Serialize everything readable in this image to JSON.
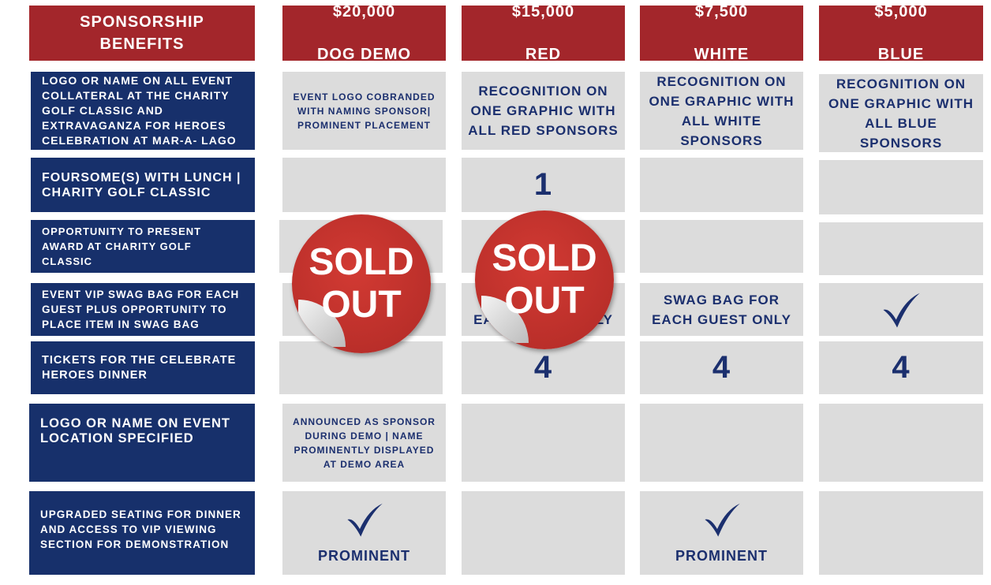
{
  "header": {
    "title": "SPONSORSHIP BENEFITS",
    "columns": [
      {
        "price": "$20,000",
        "name": "DOG DEMO"
      },
      {
        "price": "$15,000",
        "name": "RED"
      },
      {
        "price": "$7,500",
        "name": "WHITE"
      },
      {
        "price": "$5,000",
        "name": "BLUE"
      }
    ]
  },
  "rows": [
    {
      "label": "LOGO OR NAME ON ALL EVENT COLLATERAL AT THE CHARITY GOLF CLASSIC AND EXTRAVAGANZA FOR HEROES CELEBRATION AT MAR-A- LAGO",
      "cells": [
        "EVENT LOGO COBRANDED WITH NAMING SPONSOR| PROMINENT PLACEMENT",
        "RECOGNITION ON ONE GRAPHIC WITH ALL RED SPONSORS",
        "RECOGNITION ON ONE GRAPHIC WITH ALL WHITE SPONSORS",
        "RECOGNITION ON ONE GRAPHIC WITH ALL BLUE SPONSORS"
      ]
    },
    {
      "label": "FOURSOME(S) WITH LUNCH | CHARITY GOLF CLASSIC",
      "cells": [
        null,
        "1",
        null,
        null
      ]
    },
    {
      "label": "OPPORTUNITY TO PRESENT AWARD AT CHARITY GOLF CLASSIC",
      "cells": [
        null,
        null,
        null,
        null
      ]
    },
    {
      "label": "EVENT VIP SWAG BAG FOR EACH GUEST PLUS OPPORTUNITY TO PLACE ITEM IN SWAG BAG",
      "cells": [
        null,
        "SWAG BAG FOR EACH GUEST ONLY",
        "SWAG BAG FOR EACH GUEST ONLY",
        null
      ]
    },
    {
      "label": "TICKETS FOR THE CELEBRATE HEROES DINNER",
      "cells": [
        null,
        "4",
        "4",
        "4"
      ]
    },
    {
      "label": "LOGO OR NAME ON EVENT LOCATION SPECIFIED",
      "cells": [
        "ANNOUNCED AS SPONSOR DURING DEMO | NAME PROMINENTLY DISPLAYED AT DEMO AREA",
        null,
        null,
        null
      ]
    },
    {
      "label": "UPGRADED SEATING FOR DINNER AND ACCESS TO VIP VIEWING SECTION FOR DEMONSTRATION",
      "cells": [
        "PROMINENT",
        null,
        "PROMINENT",
        null
      ]
    }
  ],
  "stickers": [
    "SOLD OUT",
    "SOLD OUT"
  ]
}
